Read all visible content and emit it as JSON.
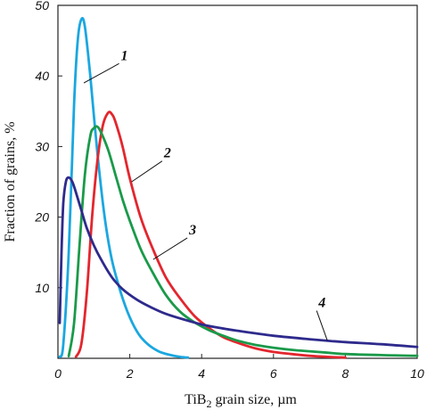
{
  "chart_data": {
    "type": "line",
    "xlabel": {
      "main": "TiB",
      "sub": "2",
      "rest": " grain size, µm"
    },
    "ylabel": "Fraction of grains, %",
    "xlim": [
      0,
      10
    ],
    "ylim": [
      0,
      50
    ],
    "xticks": [
      "0",
      "2",
      "4",
      "6",
      "8",
      "10"
    ],
    "yticks": [
      "10",
      "20",
      "30",
      "40",
      "50"
    ],
    "grid": false,
    "series": [
      {
        "label": "1",
        "color": "#1aa7e0",
        "x": [
          0.05,
          0.15,
          0.3,
          0.45,
          0.55,
          0.65,
          0.75,
          0.9,
          1.1,
          1.3,
          1.5,
          1.75,
          2.0,
          2.25,
          2.5,
          2.8,
          3.1,
          3.4,
          3.62
        ],
        "y": [
          0.2,
          2,
          15,
          36,
          45,
          48,
          47,
          40,
          29,
          20,
          14,
          9.3,
          5.8,
          3.4,
          2.0,
          1.0,
          0.5,
          0.2,
          0.1
        ]
      },
      {
        "label": "2",
        "color": "#e3262e",
        "x": [
          0.5,
          0.65,
          0.8,
          0.95,
          1.1,
          1.25,
          1.4,
          1.5,
          1.6,
          1.8,
          2.0,
          2.3,
          2.6,
          3.0,
          3.4,
          3.8,
          4.2,
          4.6,
          5.0,
          5.5,
          6.0,
          6.5,
          7.0,
          7.5,
          8.0
        ],
        "y": [
          0.2,
          2,
          9,
          20,
          28,
          33,
          34.8,
          34.6,
          33.5,
          30,
          25.5,
          20,
          16,
          11.5,
          8.5,
          6,
          4.3,
          3,
          2.2,
          1.4,
          0.9,
          0.6,
          0.35,
          0.2,
          0.1
        ]
      },
      {
        "label": "3",
        "color": "#1a9a4a",
        "x": [
          0.3,
          0.45,
          0.6,
          0.75,
          0.9,
          1.0,
          1.1,
          1.2,
          1.4,
          1.6,
          1.8,
          2.0,
          2.3,
          2.6,
          3.0,
          3.4,
          3.8,
          4.2,
          4.6,
          5.0,
          5.5,
          6.0,
          6.5,
          7.0,
          7.5,
          8.0,
          9.0,
          10.0
        ],
        "y": [
          0.3,
          5,
          16,
          26,
          31.5,
          32.6,
          32.8,
          32,
          29.5,
          26,
          22.5,
          19.5,
          15.5,
          12.5,
          9,
          6.6,
          5.1,
          4.0,
          3.2,
          2.5,
          1.9,
          1.5,
          1.2,
          1.0,
          0.8,
          0.6,
          0.45,
          0.35
        ]
      },
      {
        "label": "4",
        "color": "#2e2a8c",
        "x": [
          0.05,
          0.1,
          0.15,
          0.22,
          0.3,
          0.4,
          0.5,
          0.65,
          0.8,
          1.0,
          1.2,
          1.5,
          1.8,
          2.2,
          2.6,
          3.0,
          3.5,
          4.0,
          4.5,
          5.0,
          6.0,
          7.0,
          8.0,
          9.0,
          10.0
        ],
        "y": [
          5,
          15,
          22,
          25,
          25.6,
          25,
          23.5,
          21,
          18.5,
          16,
          14,
          11.5,
          9.8,
          8.3,
          7.2,
          6.3,
          5.5,
          4.8,
          4.3,
          3.9,
          3.2,
          2.7,
          2.3,
          2.0,
          1.6
        ]
      }
    ],
    "annotations": [
      {
        "text": "1",
        "series": 0,
        "at_x": 0.72,
        "at_y": 39,
        "label_x": 1.8,
        "label_y": 42
      },
      {
        "text": "2",
        "series": 1,
        "at_x": 2.05,
        "at_y": 25,
        "label_x": 3.0,
        "label_y": 28.2
      },
      {
        "text": "3",
        "series": 2,
        "at_x": 2.65,
        "at_y": 14,
        "label_x": 3.7,
        "label_y": 17.3
      },
      {
        "text": "4",
        "series": 3,
        "at_x": 7.5,
        "at_y": 2.5,
        "label_x": 7.3,
        "label_y": 7.0
      }
    ]
  }
}
